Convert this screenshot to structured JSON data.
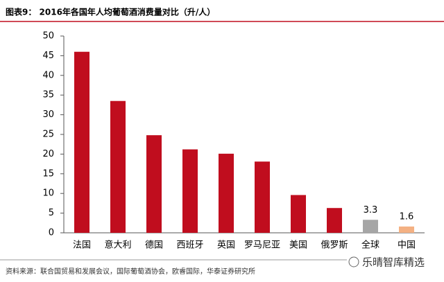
{
  "chart_data": {
    "type": "bar",
    "title": "图表9：  2016年各国年人均葡萄酒消费量对比（升/人）",
    "categories": [
      "法国",
      "意大利",
      "德国",
      "西班牙",
      "英国",
      "罗马尼亚",
      "美国",
      "俄罗斯",
      "全球",
      "中国"
    ],
    "values": [
      46,
      33.5,
      24.8,
      21.2,
      20.1,
      18.1,
      9.6,
      6.3,
      3.3,
      1.6
    ],
    "value_labels": [
      null,
      null,
      null,
      null,
      null,
      null,
      null,
      null,
      "3.3",
      "1.6"
    ],
    "colors": [
      "#c00d1e",
      "#c00d1e",
      "#c00d1e",
      "#c00d1e",
      "#c00d1e",
      "#c00d1e",
      "#c00d1e",
      "#c00d1e",
      "#a6a6a6",
      "#f4b183"
    ],
    "ylim": [
      0,
      50
    ],
    "yticks": [
      0,
      5,
      10,
      15,
      20,
      25,
      30,
      35,
      40,
      45,
      50
    ],
    "grid": false,
    "source": "资料来源：联合国贸易和发展会议，国际葡萄酒协会，欧睿国际，华泰证券研究所",
    "watermark": "乐晴智库精选"
  }
}
